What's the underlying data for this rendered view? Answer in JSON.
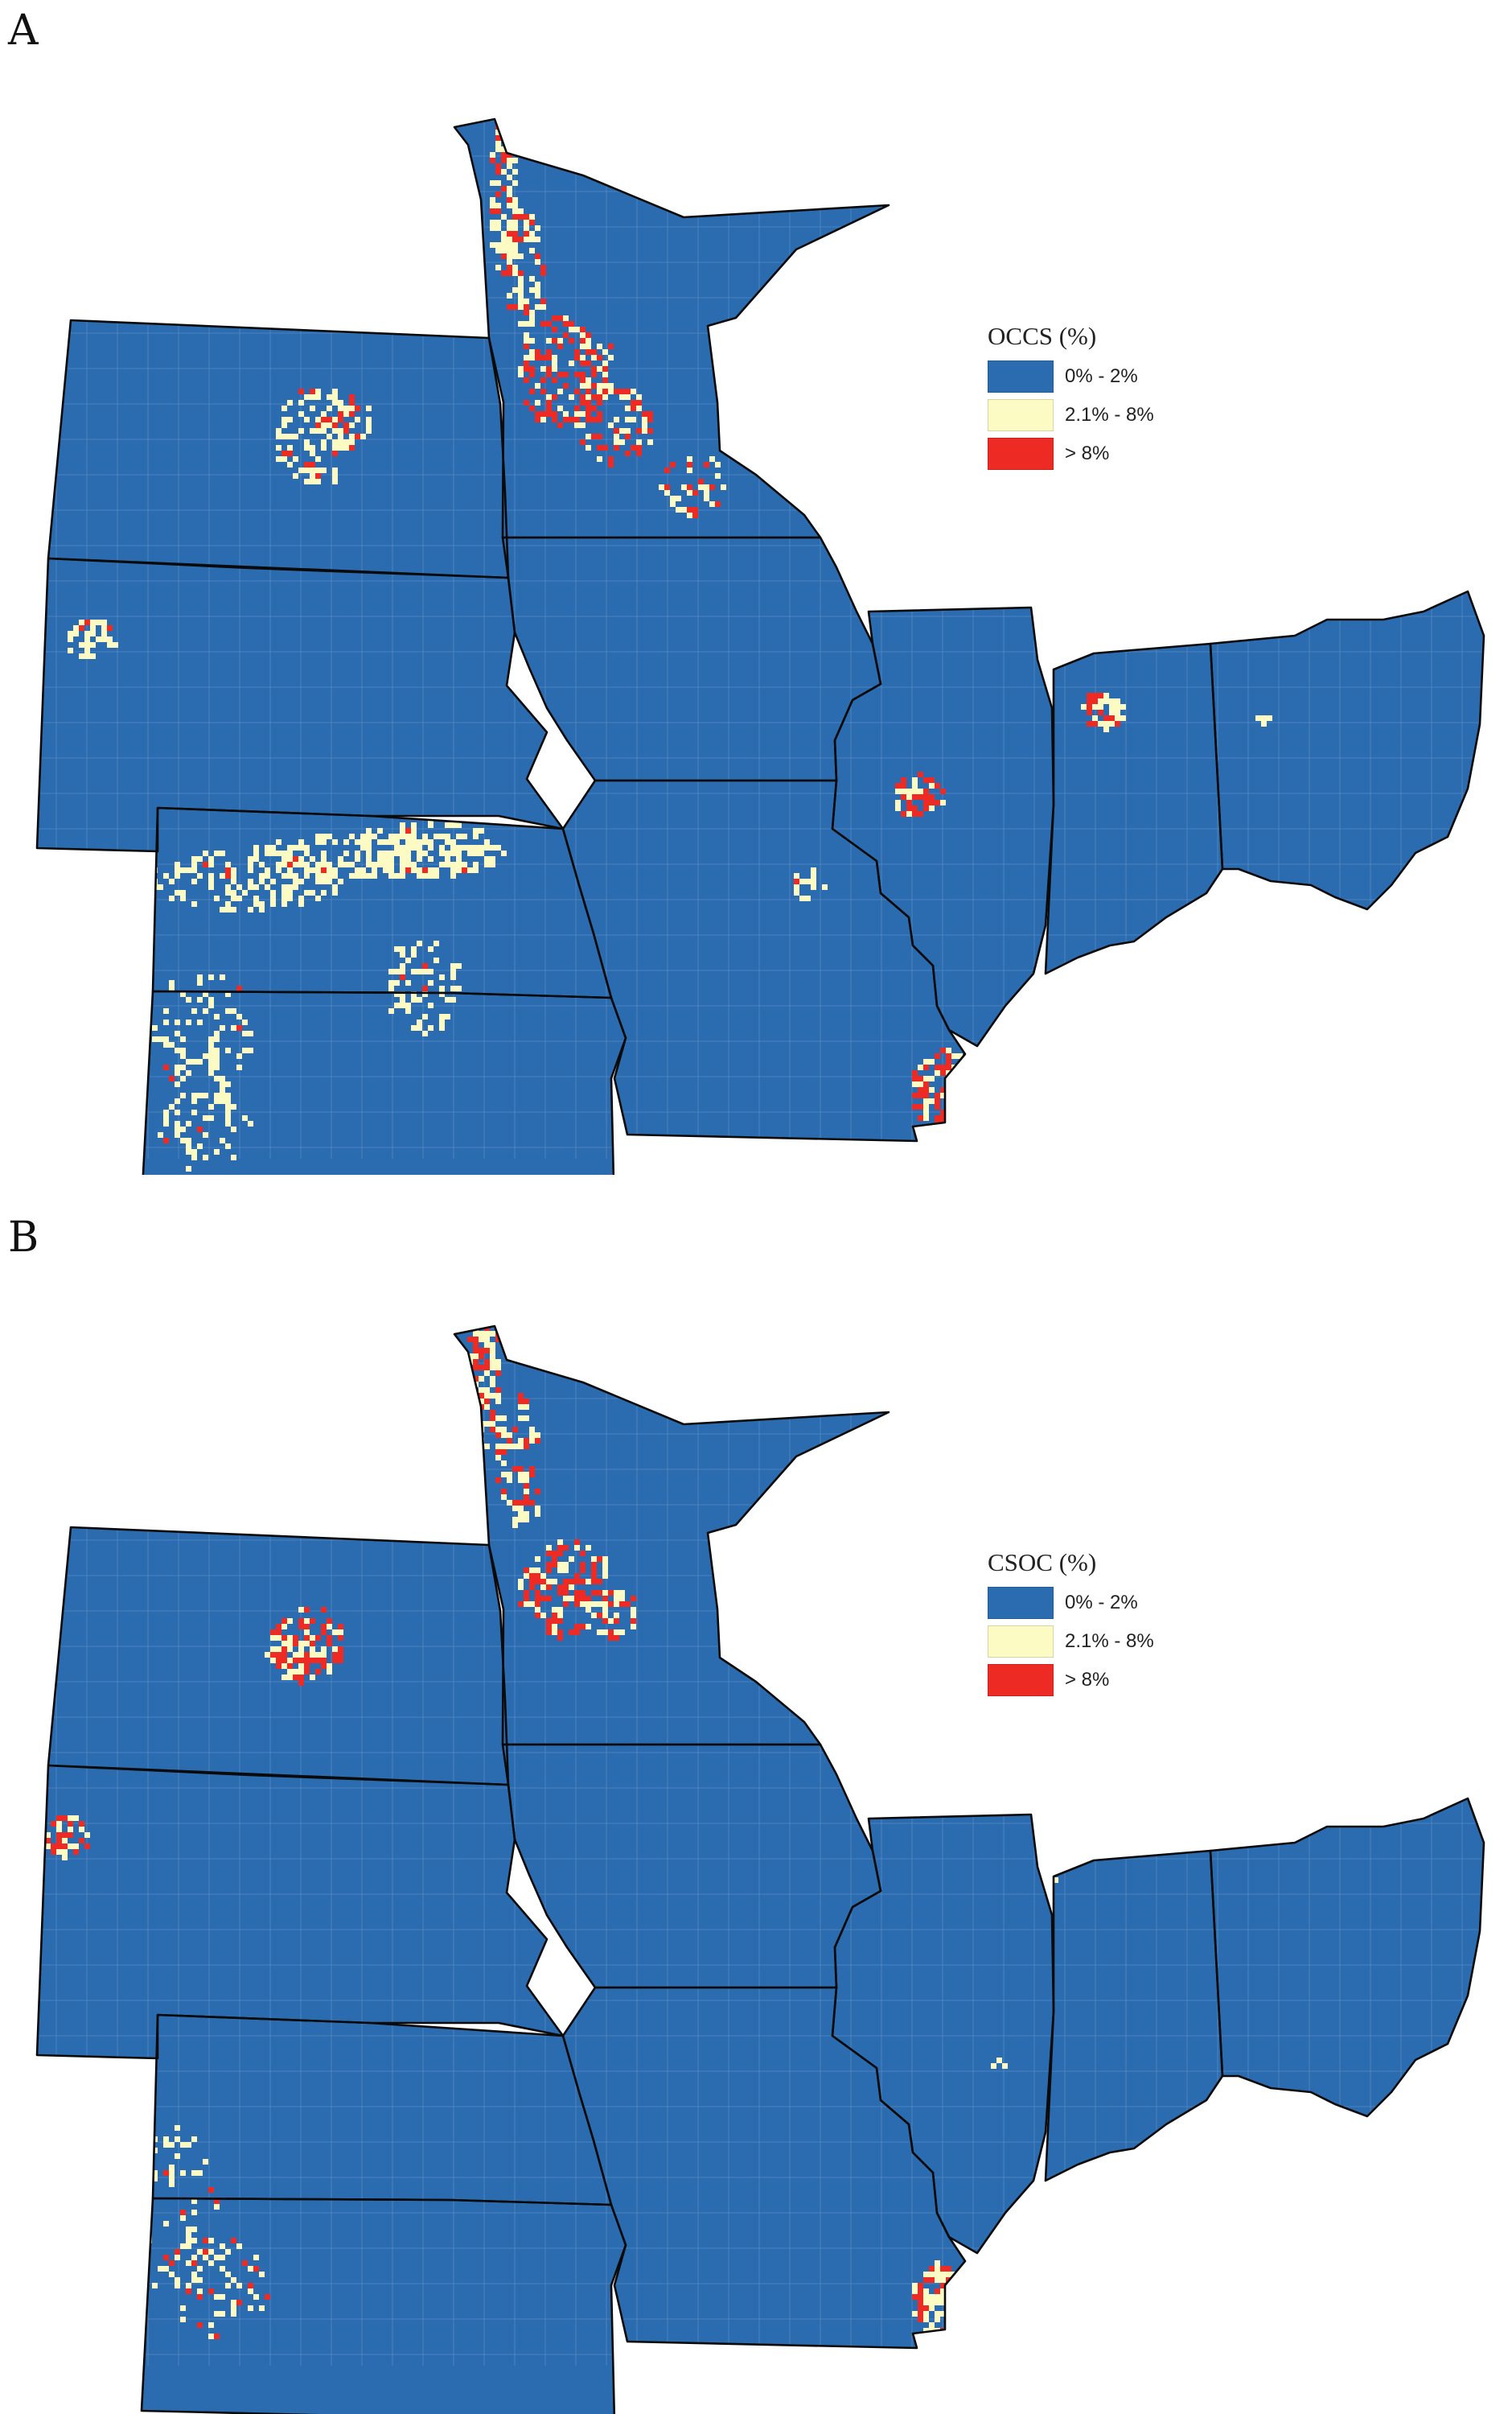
{
  "figure": {
    "colors": {
      "low": "#2b6cb0",
      "mid": "#fdfbc4",
      "high": "#ee2a24",
      "borders": "#0a0a0a",
      "county_lines": "#7aa3d4"
    },
    "panels": [
      {
        "letter": "A",
        "legend_title": "OCCS (%)",
        "legend_items": [
          {
            "label": "0% - 2%",
            "color": "#2b6cb0"
          },
          {
            "label": "2.1% - 8%",
            "color": "#fdfbc4"
          },
          {
            "label": "> 8%",
            "color": "#ee2a24"
          }
        ]
      },
      {
        "letter": "B",
        "legend_title": "CSOC (%)",
        "legend_items": [
          {
            "label": "0% - 2%",
            "color": "#2b6cb0"
          },
          {
            "label": "2.1% - 8%",
            "color": "#fdfbc4"
          },
          {
            "label": "> 8%",
            "color": "#ee2a24"
          }
        ]
      }
    ]
  }
}
